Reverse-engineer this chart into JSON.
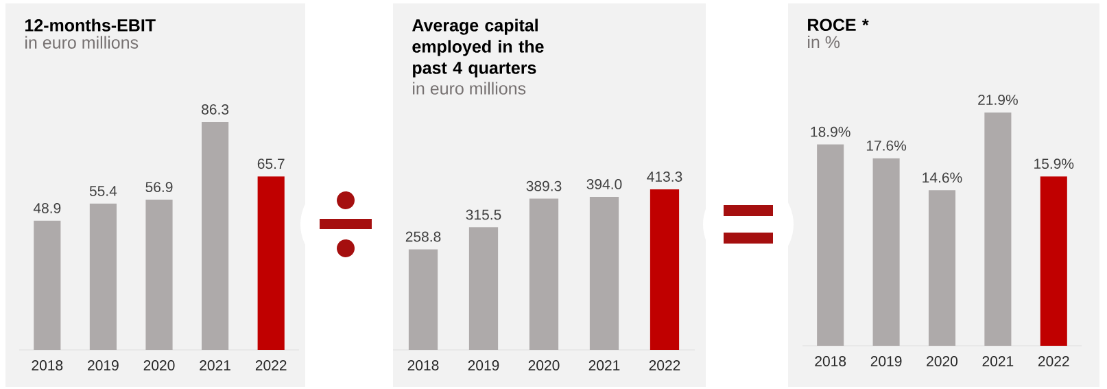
{
  "chart_data": [
    {
      "type": "bar",
      "title": "12-months-EBIT",
      "subtitle": "in euro millions",
      "categories": [
        "2018",
        "2019",
        "2020",
        "2021",
        "2022"
      ],
      "values": [
        48.9,
        55.4,
        56.9,
        86.3,
        65.7
      ],
      "colors": [
        "#aeaaaa",
        "#aeaaaa",
        "#aeaaaa",
        "#aeaaaa",
        "#c00000"
      ],
      "data_labels": true
    },
    {
      "type": "bar",
      "title": "Average capital employed in the past 4 quarters",
      "subtitle": "in euro millions",
      "categories": [
        "2018",
        "2019",
        "2020",
        "2021",
        "2022"
      ],
      "values": [
        258.8,
        315.5,
        389.3,
        394.0,
        413.3
      ],
      "value_labels": [
        "258.8",
        "315.5",
        "389.3",
        "394.0",
        "413.3"
      ],
      "colors": [
        "#aeaaaa",
        "#aeaaaa",
        "#aeaaaa",
        "#aeaaaa",
        "#c00000"
      ]
    },
    {
      "type": "bar",
      "title": "ROCE *",
      "subtitle": "in %",
      "categories": [
        "2018",
        "2019",
        "2020",
        "2021",
        "2022"
      ],
      "values": [
        18.9,
        17.6,
        14.6,
        21.9,
        15.9
      ],
      "value_labels": [
        "18.9%",
        "17.6%",
        "14.6%",
        "21.9%",
        "15.9%"
      ],
      "colors": [
        "#aeaaaa",
        "#aeaaaa",
        "#aeaaaa",
        "#aeaaaa",
        "#c00000"
      ]
    }
  ]
}
